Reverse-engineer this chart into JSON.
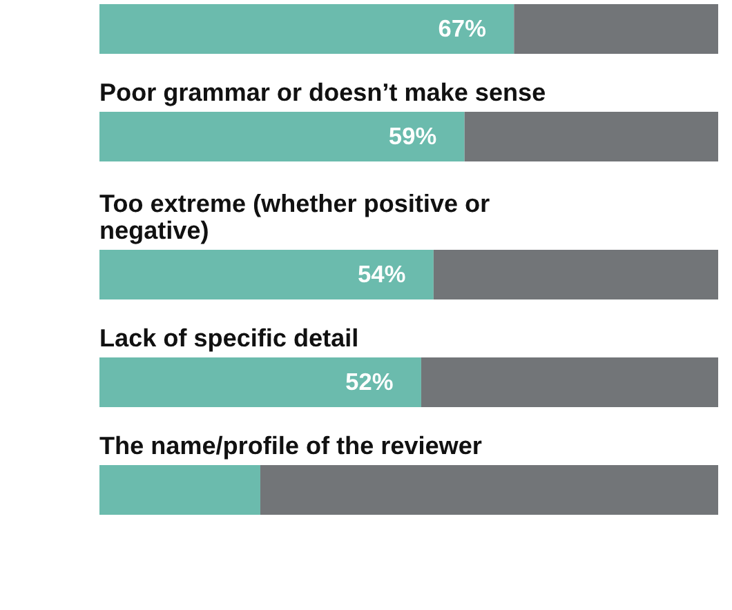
{
  "chart_data": {
    "type": "bar",
    "orientation": "horizontal",
    "stacked": true,
    "categories": [
      null,
      "Poor grammar or doesn’t make sense",
      "Too extreme (whether positive or\nnegative)",
      "Lack of specific detail",
      "The name/profile of the reviewer"
    ],
    "series": [
      {
        "color": "#6bbbad",
        "values": [
          67,
          59,
          54,
          52,
          26
        ],
        "value_labels": [
          "67%",
          "59%",
          "54%",
          "52%",
          null
        ]
      },
      {
        "color": "#727578",
        "values": [
          33,
          41,
          46,
          48,
          74
        ]
      }
    ],
    "xlim": [
      0,
      100
    ]
  }
}
